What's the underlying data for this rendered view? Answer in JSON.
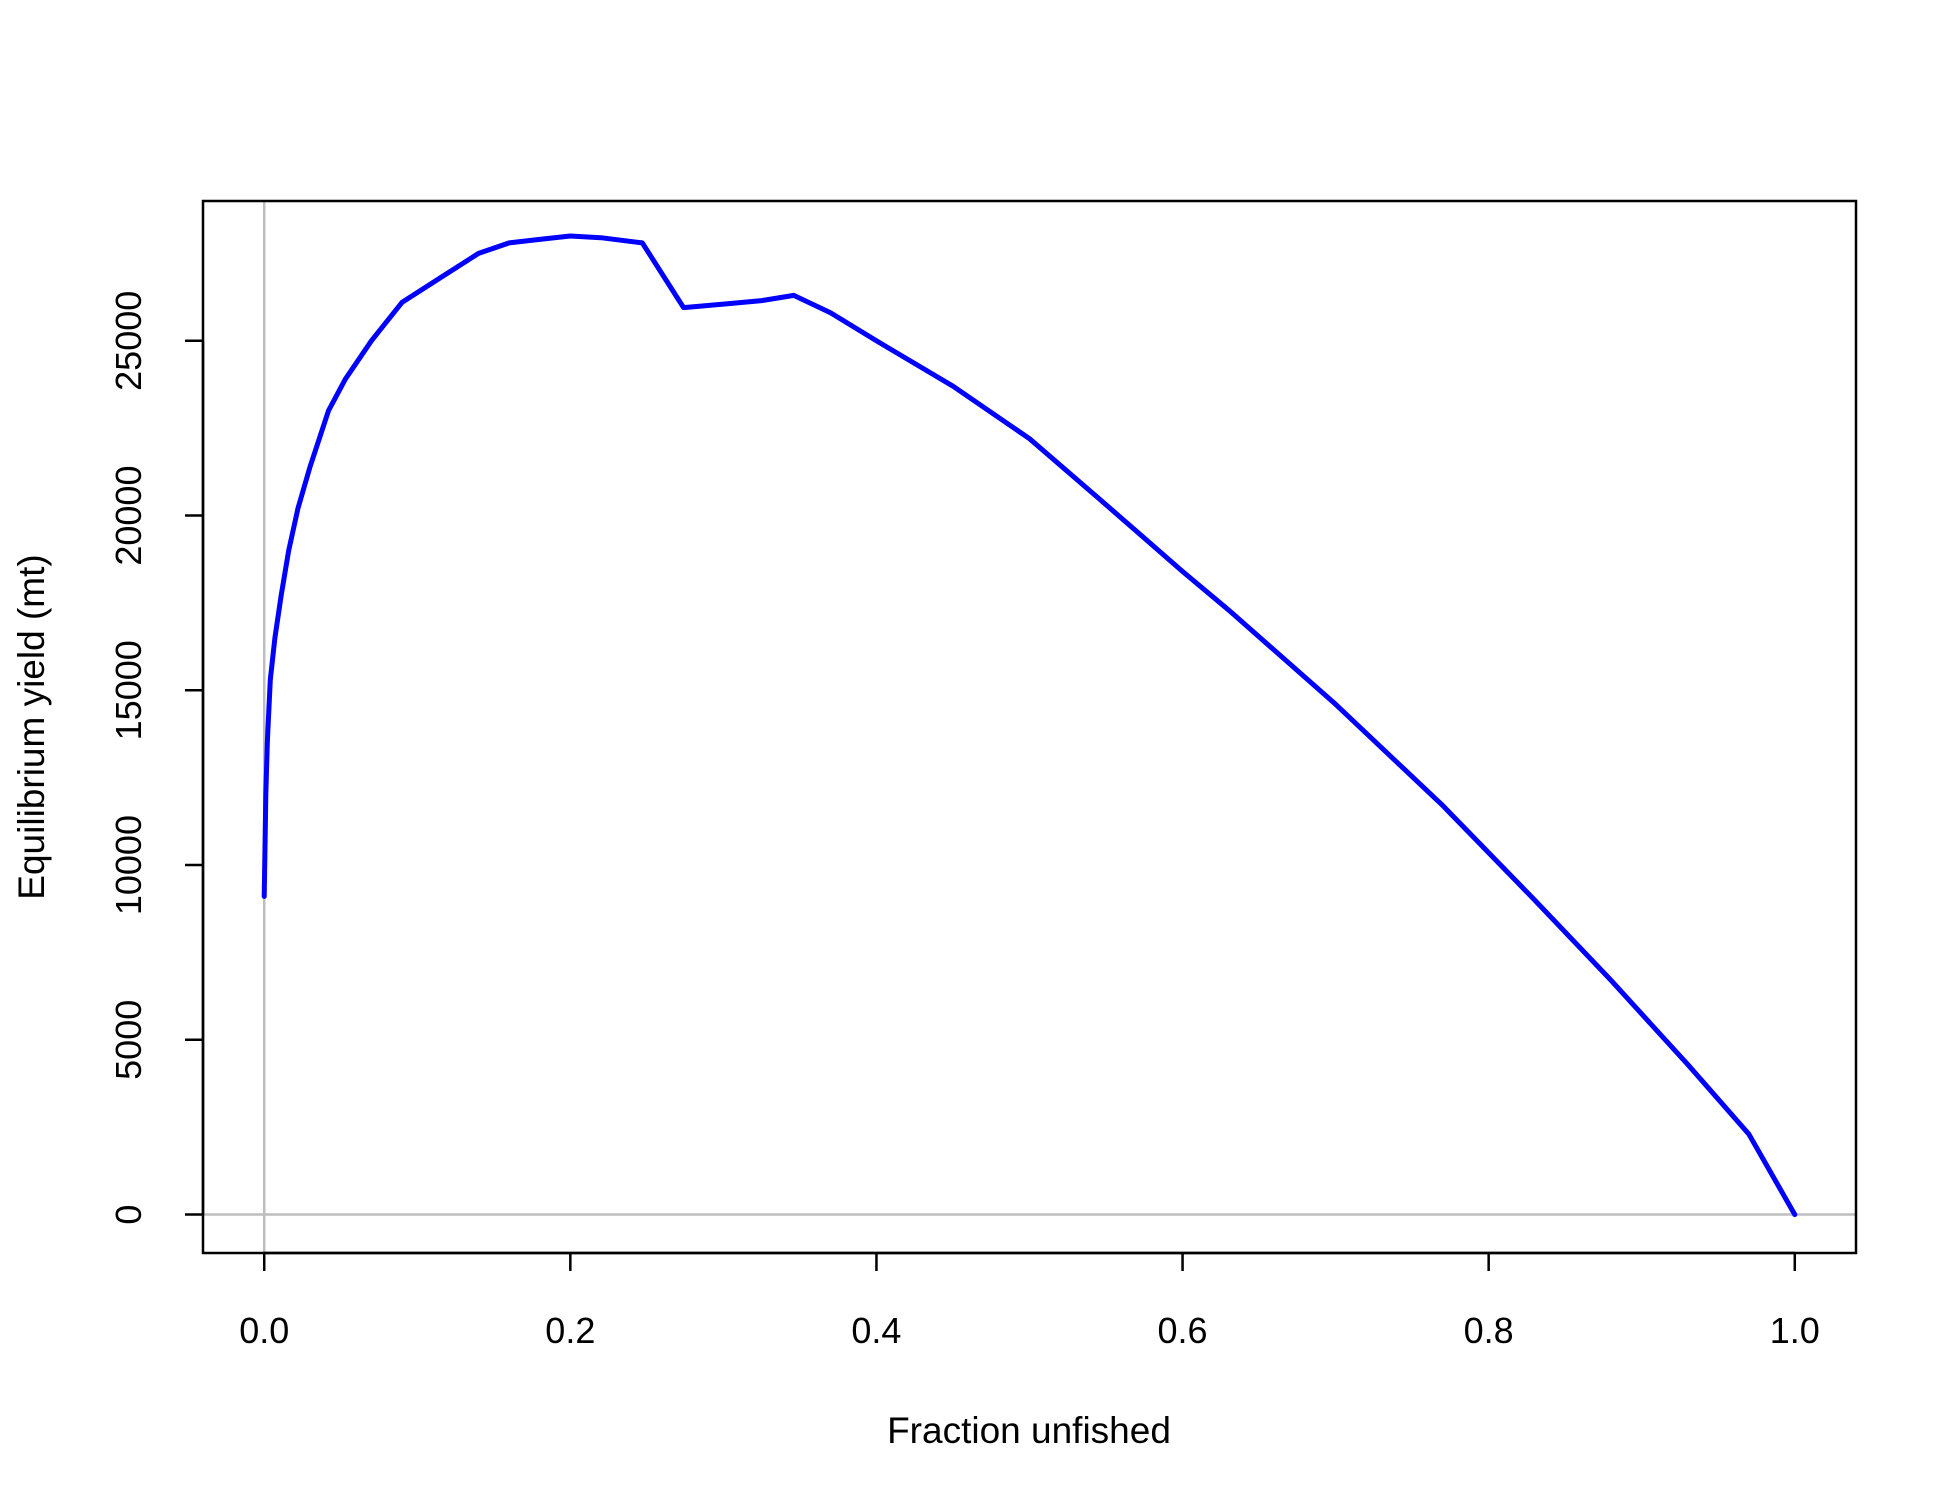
{
  "chart_data": {
    "type": "line",
    "title": "",
    "xlabel": "Fraction unfished",
    "ylabel": "Equilibrium yield (mt)",
    "xlim": [
      -0.04,
      1.04
    ],
    "ylim": [
      -1100,
      29000
    ],
    "x_ticks": [
      0.0,
      0.2,
      0.4,
      0.6,
      0.8,
      1.0
    ],
    "x_tick_labels": [
      "0.0",
      "0.2",
      "0.4",
      "0.6",
      "0.8",
      "1.0"
    ],
    "y_ticks": [
      0,
      5000,
      10000,
      15000,
      20000,
      25000
    ],
    "y_tick_labels": [
      "0",
      "5000",
      "10000",
      "15000",
      "20000",
      "25000"
    ],
    "grid": false,
    "reference_lines": {
      "vertical_x": 0,
      "horizontal_y": 0,
      "color": "#bebebe"
    },
    "series": [
      {
        "color": "#0000ff",
        "x": [
          0.0,
          0.0005,
          0.001,
          0.002,
          0.004,
          0.007,
          0.011,
          0.016,
          0.022,
          0.03,
          0.042,
          0.053,
          0.07,
          0.09,
          0.115,
          0.14,
          0.16,
          0.18,
          0.2,
          0.22,
          0.247,
          0.274,
          0.3,
          0.325,
          0.346,
          0.37,
          0.4,
          0.45,
          0.5,
          0.545,
          0.6,
          0.63,
          0.7,
          0.77,
          0.83,
          0.88,
          0.93,
          0.97,
          1.0
        ],
        "y": [
          9100,
          10500,
          12000,
          13500,
          15300,
          16500,
          17700,
          19000,
          20200,
          21400,
          23000,
          23900,
          25000,
          26100,
          26800,
          27500,
          27800,
          27900,
          28000,
          27950,
          27800,
          25950,
          26050,
          26150,
          26300,
          25800,
          25000,
          23700,
          22200,
          20500,
          18400,
          17300,
          14600,
          11700,
          9000,
          6700,
          4300,
          2300,
          0
        ]
      }
    ]
  }
}
